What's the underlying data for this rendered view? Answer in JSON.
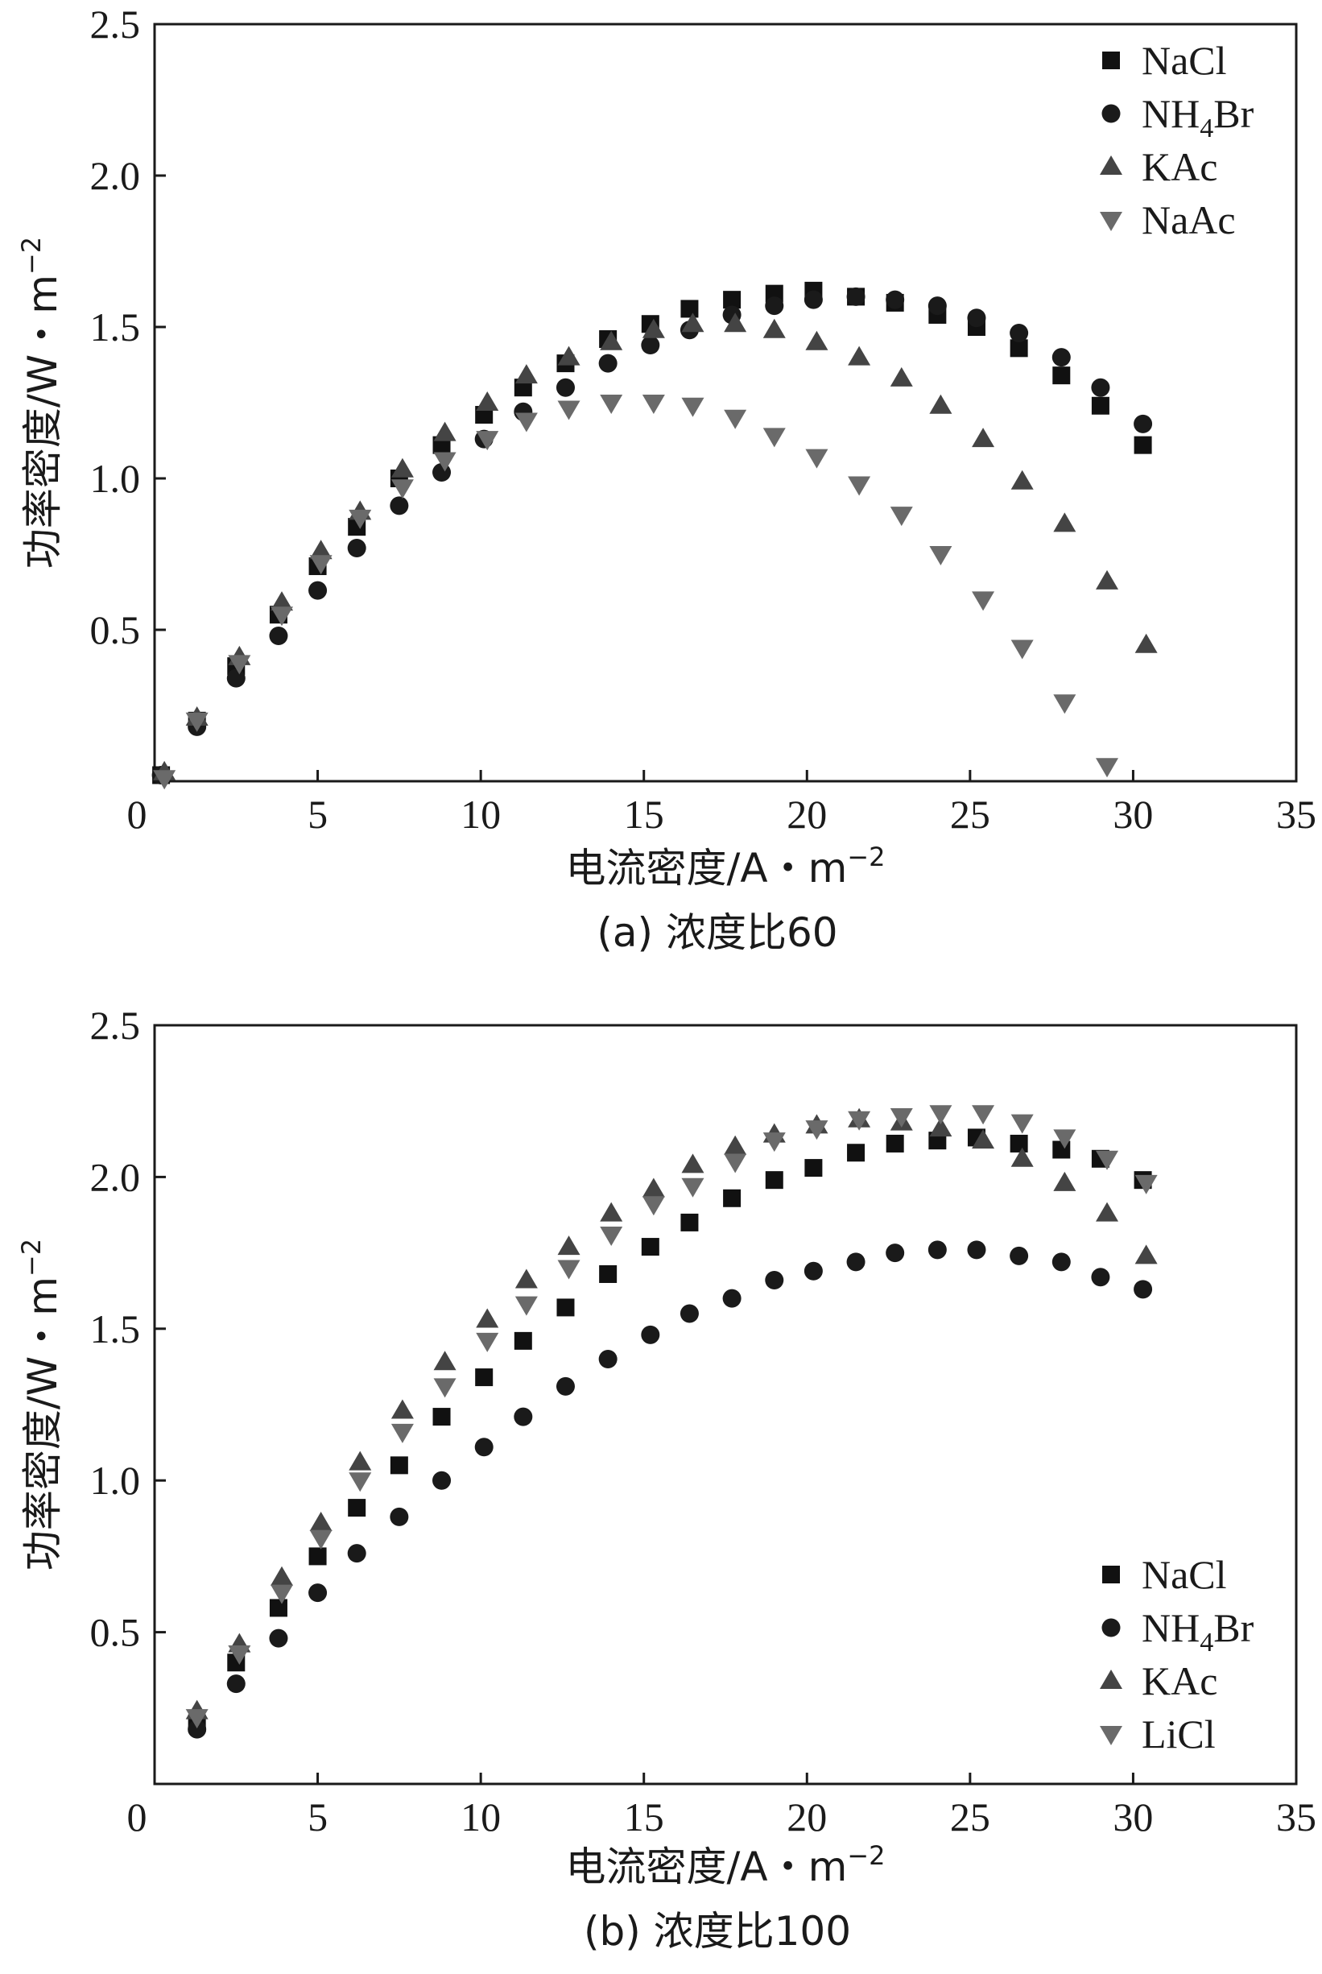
{
  "chart_data": [
    {
      "id": "a",
      "type": "scatter",
      "caption": "(a) 浓度比60",
      "xlabel": "电流密度/A・m",
      "xlabel_sup": "−2",
      "ylabel": "功率密度/W・m",
      "ylabel_sup": "−2",
      "xlim": [
        0,
        35
      ],
      "ylim": [
        0,
        2.5
      ],
      "xticks": [
        0,
        5,
        10,
        15,
        20,
        25,
        30,
        35
      ],
      "xtick_labels": [
        "0",
        "5",
        "10",
        "15",
        "20",
        "25",
        "30",
        "35"
      ],
      "yticks": [
        0.5,
        1.0,
        1.5,
        2.0,
        2.5
      ],
      "ytick_labels": [
        "0.5",
        "1.0",
        "1.5",
        "2.0",
        "2.5"
      ],
      "legend_position": "top-right",
      "series": [
        {
          "name": "NaCl",
          "legend_label": "NaCl",
          "legend_sub": "",
          "legend_tail": "",
          "marker": "square",
          "color": "#111111",
          "x": [
            0.2,
            1.3,
            2.5,
            3.8,
            5.0,
            6.2,
            7.5,
            8.8,
            10.1,
            11.3,
            12.6,
            13.9,
            15.2,
            16.4,
            17.7,
            19.0,
            20.2,
            21.5,
            22.7,
            24.0,
            25.2,
            26.5,
            27.8,
            29.0,
            30.3
          ],
          "y": [
            0.02,
            0.2,
            0.38,
            0.55,
            0.71,
            0.84,
            1.0,
            1.11,
            1.21,
            1.3,
            1.38,
            1.46,
            1.51,
            1.56,
            1.59,
            1.61,
            1.62,
            1.6,
            1.58,
            1.54,
            1.5,
            1.43,
            1.34,
            1.24,
            1.11
          ]
        },
        {
          "name": "NH4Br",
          "legend_label": "NH",
          "legend_sub": "4",
          "legend_tail": "Br",
          "marker": "circle",
          "color": "#1a1a1a",
          "x": [
            0.2,
            1.3,
            2.5,
            3.8,
            5.0,
            6.2,
            7.5,
            8.8,
            10.1,
            11.3,
            12.6,
            13.9,
            15.2,
            16.4,
            17.7,
            19.0,
            20.2,
            21.5,
            22.7,
            24.0,
            25.2,
            26.5,
            27.8,
            29.0,
            30.3
          ],
          "y": [
            0.02,
            0.18,
            0.34,
            0.48,
            0.63,
            0.77,
            0.91,
            1.02,
            1.13,
            1.22,
            1.3,
            1.38,
            1.44,
            1.49,
            1.54,
            1.57,
            1.59,
            1.6,
            1.59,
            1.57,
            1.53,
            1.48,
            1.4,
            1.3,
            1.18
          ]
        },
        {
          "name": "KAc",
          "legend_label": "KAc",
          "legend_sub": "",
          "legend_tail": "",
          "marker": "triangle-up",
          "color": "#444444",
          "x": [
            0.3,
            1.3,
            2.6,
            3.9,
            5.1,
            6.3,
            7.6,
            8.9,
            10.2,
            11.4,
            12.7,
            14.0,
            15.3,
            16.5,
            17.8,
            19.0,
            20.3,
            21.6,
            22.9,
            24.1,
            25.4,
            26.6,
            27.9,
            29.2,
            30.4
          ],
          "y": [
            0.03,
            0.21,
            0.41,
            0.59,
            0.76,
            0.89,
            1.03,
            1.15,
            1.25,
            1.34,
            1.4,
            1.45,
            1.49,
            1.51,
            1.51,
            1.49,
            1.45,
            1.4,
            1.33,
            1.24,
            1.13,
            0.99,
            0.85,
            0.66,
            0.45
          ]
        },
        {
          "name": "NaAc",
          "legend_label": "NaAc",
          "legend_sub": "",
          "legend_tail": "",
          "marker": "triangle-down",
          "color": "#6a6a6a",
          "x": [
            0.3,
            1.3,
            2.6,
            3.9,
            5.1,
            6.3,
            7.6,
            8.9,
            10.2,
            11.4,
            12.7,
            14.0,
            15.3,
            16.5,
            17.8,
            19.0,
            20.3,
            21.6,
            22.9,
            24.1,
            25.4,
            26.6,
            27.9,
            29.2
          ],
          "y": [
            0.01,
            0.2,
            0.39,
            0.55,
            0.72,
            0.87,
            0.97,
            1.06,
            1.13,
            1.19,
            1.23,
            1.25,
            1.25,
            1.24,
            1.2,
            1.14,
            1.07,
            0.98,
            0.88,
            0.75,
            0.6,
            0.44,
            0.26,
            0.05
          ]
        }
      ]
    },
    {
      "id": "b",
      "type": "scatter",
      "caption": "(b) 浓度比100",
      "xlabel": "电流密度/A・m",
      "xlabel_sup": "−2",
      "ylabel": "功率密度/W・m",
      "ylabel_sup": "−2",
      "xlim": [
        0,
        35
      ],
      "ylim": [
        0,
        2.5
      ],
      "xticks": [
        0,
        5,
        10,
        15,
        20,
        25,
        30,
        35
      ],
      "xtick_labels": [
        "0",
        "5",
        "10",
        "15",
        "20",
        "25",
        "30",
        "35"
      ],
      "yticks": [
        0.5,
        1.0,
        1.5,
        2.0,
        2.5
      ],
      "ytick_labels": [
        "0.5",
        "1.0",
        "1.5",
        "2.0",
        "2.5"
      ],
      "legend_position": "bottom-right",
      "series": [
        {
          "name": "NaCl",
          "legend_label": "NaCl",
          "legend_sub": "",
          "legend_tail": "",
          "marker": "square",
          "color": "#111111",
          "x": [
            1.3,
            2.5,
            3.8,
            5.0,
            6.2,
            7.5,
            8.8,
            10.1,
            11.3,
            12.6,
            13.9,
            15.2,
            16.4,
            17.7,
            19.0,
            20.2,
            21.5,
            22.7,
            24.0,
            25.2,
            26.5,
            27.8,
            29.0,
            30.3
          ],
          "y": [
            0.2,
            0.4,
            0.58,
            0.75,
            0.91,
            1.05,
            1.21,
            1.34,
            1.46,
            1.57,
            1.68,
            1.77,
            1.85,
            1.93,
            1.99,
            2.03,
            2.08,
            2.11,
            2.12,
            2.13,
            2.11,
            2.09,
            2.06,
            1.99
          ]
        },
        {
          "name": "NH4Br",
          "legend_label": "NH",
          "legend_sub": "4",
          "legend_tail": "Br",
          "marker": "circle",
          "color": "#1a1a1a",
          "x": [
            1.3,
            2.5,
            3.8,
            5.0,
            6.2,
            7.5,
            8.8,
            10.1,
            11.3,
            12.6,
            13.9,
            15.2,
            16.4,
            17.7,
            19.0,
            20.2,
            21.5,
            22.7,
            24.0,
            25.2,
            26.5,
            27.8,
            29.0,
            30.3
          ],
          "y": [
            0.18,
            0.33,
            0.48,
            0.63,
            0.76,
            0.88,
            1.0,
            1.11,
            1.21,
            1.31,
            1.4,
            1.48,
            1.55,
            1.6,
            1.66,
            1.69,
            1.72,
            1.75,
            1.76,
            1.76,
            1.74,
            1.72,
            1.67,
            1.63
          ]
        },
        {
          "name": "KAc",
          "legend_label": "KAc",
          "legend_sub": "",
          "legend_tail": "",
          "marker": "triangle-up",
          "color": "#444444",
          "x": [
            1.3,
            2.6,
            3.9,
            5.1,
            6.3,
            7.6,
            8.9,
            10.2,
            11.4,
            12.7,
            14.0,
            15.3,
            16.5,
            17.8,
            19.0,
            20.3,
            21.6,
            22.9,
            24.1,
            25.4,
            26.6,
            27.9,
            29.2,
            30.4
          ],
          "y": [
            0.24,
            0.46,
            0.68,
            0.86,
            1.06,
            1.23,
            1.39,
            1.53,
            1.66,
            1.77,
            1.88,
            1.96,
            2.04,
            2.1,
            2.14,
            2.17,
            2.19,
            2.18,
            2.16,
            2.12,
            2.06,
            1.98,
            1.88,
            1.74
          ]
        },
        {
          "name": "LiCl",
          "legend_label": "LiCl",
          "legend_sub": "",
          "legend_tail": "",
          "marker": "triangle-down",
          "color": "#6a6a6a",
          "x": [
            1.3,
            2.6,
            3.9,
            5.1,
            6.3,
            7.6,
            8.9,
            10.2,
            11.4,
            12.7,
            14.0,
            15.3,
            16.5,
            17.8,
            19.0,
            20.3,
            21.6,
            22.9,
            24.1,
            25.4,
            26.6,
            27.9,
            29.2,
            30.4
          ],
          "y": [
            0.22,
            0.43,
            0.63,
            0.81,
            1.0,
            1.16,
            1.31,
            1.46,
            1.58,
            1.7,
            1.81,
            1.91,
            1.97,
            2.05,
            2.12,
            2.16,
            2.19,
            2.2,
            2.21,
            2.21,
            2.18,
            2.13,
            2.06,
            1.98
          ]
        }
      ]
    }
  ]
}
